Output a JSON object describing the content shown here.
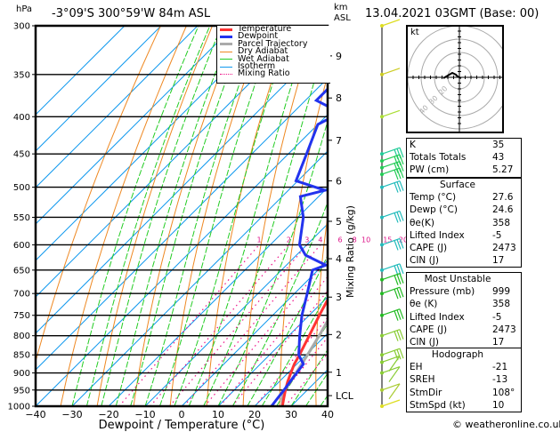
{
  "header": {
    "location": "-3°09'S  300°59'W  84m  ASL",
    "datetime": "13.04.2021  03GMT  (Base: 00)",
    "pressure_unit": "hPa",
    "height_unit_line1": "km",
    "height_unit_line2": "ASL"
  },
  "legend": [
    {
      "label": "Temperature",
      "color": "#ff3333",
      "style": "solid-thick"
    },
    {
      "label": "Dewpoint",
      "color": "#2233ee",
      "style": "solid-thick"
    },
    {
      "label": "Parcel Trajectory",
      "color": "#aaaaaa",
      "style": "solid-thick"
    },
    {
      "label": "Dry Adiabat",
      "color": "#ee8822",
      "style": "solid"
    },
    {
      "label": "Wet Adiabat",
      "color": "#22cc22",
      "style": "solid"
    },
    {
      "label": "Isotherm",
      "color": "#1199ee",
      "style": "solid"
    },
    {
      "label": "Mixing Ratio",
      "color": "#ee1188",
      "style": "dotted"
    }
  ],
  "hodograph": {
    "unit_label": "kt",
    "ring_labels": [
      "10",
      "20",
      "30",
      "40"
    ]
  },
  "indices": {
    "rows": [
      {
        "label": "K",
        "value": "35"
      },
      {
        "label": "Totals Totals",
        "value": "43"
      },
      {
        "label": "PW (cm)",
        "value": "5.27"
      }
    ]
  },
  "surface": {
    "title": "Surface",
    "rows": [
      {
        "label": "Temp (°C)",
        "value": "27.6"
      },
      {
        "label": "Dewp (°C)",
        "value": "24.6"
      },
      {
        "label": "θe(K)",
        "value": "358"
      },
      {
        "label": "Lifted Index",
        "value": "-5"
      },
      {
        "label": "CAPE (J)",
        "value": "2473"
      },
      {
        "label": "CIN (J)",
        "value": "17"
      }
    ]
  },
  "most_unstable": {
    "title": "Most Unstable",
    "rows": [
      {
        "label": "Pressure (mb)",
        "value": "999"
      },
      {
        "label": "θe (K)",
        "value": "358"
      },
      {
        "label": "Lifted Index",
        "value": "-5"
      },
      {
        "label": "CAPE (J)",
        "value": "2473"
      },
      {
        "label": "CIN (J)",
        "value": "17"
      }
    ]
  },
  "hodo_indices": {
    "title": "Hodograph",
    "rows": [
      {
        "label": "EH",
        "value": "-21"
      },
      {
        "label": "SREH",
        "value": "-13"
      },
      {
        "label": "StmDir",
        "value": "108°"
      },
      {
        "label": "StmSpd (kt)",
        "value": "10"
      }
    ]
  },
  "watermark": "© weatheronline.co.uk",
  "chart_data": {
    "type": "line",
    "subtype": "skew-t log-p",
    "xlabel": "Dewpoint / Temperature (°C)",
    "ylabel": "hPa",
    "right_label": "Mixing Ratio (g/kg)",
    "xlim": [
      -40,
      40
    ],
    "ylim": [
      1000,
      300
    ],
    "x_ticks": [
      -40,
      -30,
      -20,
      -10,
      0,
      10,
      20,
      30,
      40
    ],
    "pressure_ticks": [
      300,
      350,
      400,
      450,
      500,
      550,
      600,
      650,
      700,
      750,
      800,
      850,
      900,
      950,
      1000
    ],
    "height_ticks_km": [
      {
        "label": "9",
        "p": 330
      },
      {
        "label": "8",
        "p": 377
      },
      {
        "label": "7",
        "p": 431
      },
      {
        "label": "6",
        "p": 490
      },
      {
        "label": "5",
        "p": 557
      },
      {
        "label": "4",
        "p": 627
      },
      {
        "label": "3",
        "p": 708
      },
      {
        "label": "2",
        "p": 797
      },
      {
        "label": "1",
        "p": 898
      },
      {
        "label": "LCL",
        "p": 967
      }
    ],
    "mixing_ratio_labels": [
      "1",
      "2",
      "3",
      "4",
      "6",
      "8",
      "10",
      "15",
      "20",
      "25"
    ],
    "mixing_ratio_label_p": 600,
    "series": [
      {
        "name": "Temperature",
        "p": [
          1000,
          975,
          950,
          925,
          900,
          875,
          850,
          800,
          750,
          700,
          650,
          600,
          550,
          500,
          450,
          400,
          350,
          300
        ],
        "t": [
          27.6,
          25.8,
          24.0,
          22.3,
          20.8,
          19.3,
          18.2,
          15.6,
          12.8,
          10.0,
          7.0,
          3.8,
          0.4,
          -4.6,
          -10.0,
          -16.2,
          -23.8,
          -33.0
        ]
      },
      {
        "name": "Dewpoint",
        "p": [
          1000,
          975,
          950,
          925,
          900,
          875,
          860,
          850,
          800,
          750,
          700,
          650,
          640,
          620,
          600,
          550,
          515,
          505,
          490,
          450,
          410,
          395,
          380,
          365,
          350,
          330,
          300
        ],
        "t": [
          24.6,
          24.1,
          23.6,
          23.0,
          22.4,
          21.8,
          19.5,
          18.0,
          13.0,
          8.0,
          3.5,
          -1.5,
          0.8,
          -7.5,
          -12.0,
          -18.5,
          -25.0,
          -20.0,
          -30.5,
          -35.0,
          -40.0,
          -37.0,
          -47.0,
          -47.0,
          -49.0,
          -58.0,
          -62.0
        ]
      },
      {
        "name": "Parcel Trajectory",
        "p": [
          1000,
          975,
          950,
          925,
          900,
          850,
          800,
          750,
          700,
          650,
          600,
          550,
          500,
          450,
          400,
          350,
          300
        ],
        "t": [
          27.6,
          25.3,
          23.9,
          23.0,
          22.2,
          20.4,
          18.3,
          15.9,
          13.2,
          10.2,
          6.9,
          3.3,
          -0.9,
          -6.0,
          -12.0,
          -19.5,
          -29.0
        ]
      }
    ],
    "wind_barbs": {
      "p": [
        300,
        350,
        400,
        450,
        460,
        470,
        480,
        500,
        550,
        600,
        650,
        670,
        700,
        750,
        800,
        850,
        870,
        900,
        950,
        1000
      ],
      "colors": [
        "#dddd22",
        "#cccc22",
        "#aadd33",
        "#22cc99",
        "#22cc55",
        "#22cc55",
        "#22cc55",
        "#22bbbb",
        "#22bbbb",
        "#22bbbb",
        "#22bbbb",
        "#22bb22",
        "#22bb22",
        "#22bb22",
        "#88cc33",
        "#88cc33",
        "#88cc33",
        "#88cc33",
        "#aacc33",
        "#dddd22"
      ]
    }
  }
}
